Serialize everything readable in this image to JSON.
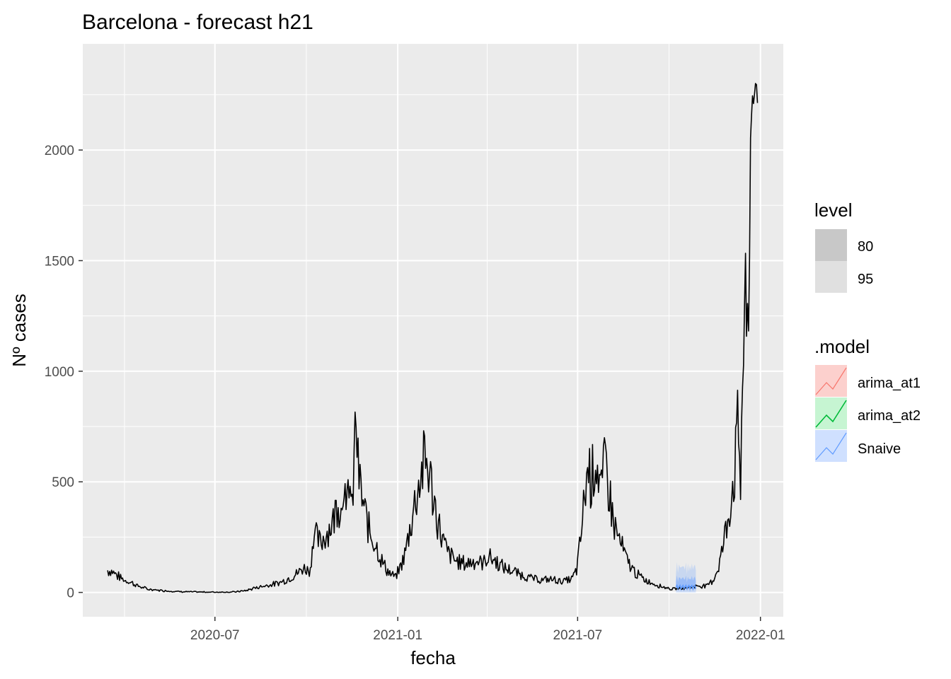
{
  "chart_data": {
    "type": "line",
    "title": "Barcelona - forecast h21",
    "xlabel": "fecha",
    "ylabel": "Nº cases",
    "x_ticks": [
      "2020-07",
      "2021-01",
      "2021-07",
      "2022-01"
    ],
    "y_ticks": [
      0,
      500,
      1000,
      1500,
      2000
    ],
    "ylim": [
      -110,
      2480
    ],
    "xlim": [
      "2020-02-19",
      "2022-01-24"
    ],
    "grid": true,
    "colors": {
      "panel": "#ebebeb",
      "grid": "#ffffff",
      "series": "#000000",
      "arima_at1": "#f8766d",
      "arima_at2": "#00ba38",
      "snaive": "#619cff",
      "level80": "#c8c8c8",
      "level95": "#e0e0e0"
    },
    "series": [
      {
        "name": "Nº cases",
        "date_range": [
          "2020-03-15",
          "2021-12-29"
        ],
        "points": [
          [
            "2020-03-15",
            100
          ],
          [
            "2020-03-20",
            95
          ],
          [
            "2020-03-25",
            75
          ],
          [
            "2020-04-01",
            55
          ],
          [
            "2020-04-08",
            45
          ],
          [
            "2020-04-15",
            28
          ],
          [
            "2020-04-25",
            14
          ],
          [
            "2020-05-10",
            8
          ],
          [
            "2020-05-25",
            4
          ],
          [
            "2020-06-10",
            2
          ],
          [
            "2020-07-01",
            1
          ],
          [
            "2020-07-20",
            2
          ],
          [
            "2020-08-01",
            8
          ],
          [
            "2020-08-10",
            20
          ],
          [
            "2020-08-20",
            30
          ],
          [
            "2020-09-01",
            40
          ],
          [
            "2020-09-10",
            55
          ],
          [
            "2020-09-20",
            80
          ],
          [
            "2020-09-28",
            110
          ],
          [
            "2020-10-05",
            100
          ],
          [
            "2020-10-08",
            270
          ],
          [
            "2020-10-15",
            220
          ],
          [
            "2020-10-20",
            260
          ],
          [
            "2020-10-28",
            320
          ],
          [
            "2020-11-02",
            430
          ],
          [
            "2020-11-05",
            360
          ],
          [
            "2020-11-08",
            580
          ],
          [
            "2020-11-10",
            300
          ],
          [
            "2020-11-13",
            540
          ],
          [
            "2020-11-16",
            350
          ],
          [
            "2020-11-19",
            700
          ],
          [
            "2020-11-20",
            800
          ],
          [
            "2020-11-22",
            560
          ],
          [
            "2020-11-25",
            450
          ],
          [
            "2020-11-28",
            380
          ],
          [
            "2020-12-02",
            300
          ],
          [
            "2020-12-06",
            250
          ],
          [
            "2020-12-10",
            220
          ],
          [
            "2020-12-15",
            150
          ],
          [
            "2020-12-20",
            110
          ],
          [
            "2020-12-25",
            80
          ],
          [
            "2020-12-30",
            70
          ],
          [
            "2021-01-04",
            120
          ],
          [
            "2021-01-08",
            170
          ],
          [
            "2021-01-12",
            260
          ],
          [
            "2021-01-15",
            330
          ],
          [
            "2021-01-20",
            450
          ],
          [
            "2021-01-25",
            540
          ],
          [
            "2021-01-28",
            600
          ],
          [
            "2021-02-01",
            560
          ],
          [
            "2021-02-05",
            450
          ],
          [
            "2021-02-10",
            330
          ],
          [
            "2021-02-15",
            240
          ],
          [
            "2021-02-20",
            180
          ],
          [
            "2021-03-01",
            140
          ],
          [
            "2021-03-10",
            130
          ],
          [
            "2021-03-20",
            145
          ],
          [
            "2021-03-28",
            130
          ],
          [
            "2021-04-02",
            165
          ],
          [
            "2021-04-10",
            140
          ],
          [
            "2021-04-18",
            110
          ],
          [
            "2021-04-25",
            100
          ],
          [
            "2021-05-05",
            80
          ],
          [
            "2021-05-15",
            65
          ],
          [
            "2021-05-25",
            55
          ],
          [
            "2021-06-05",
            60
          ],
          [
            "2021-06-15",
            50
          ],
          [
            "2021-06-25",
            60
          ],
          [
            "2021-06-30",
            100
          ],
          [
            "2021-07-03",
            200
          ],
          [
            "2021-07-06",
            330
          ],
          [
            "2021-07-09",
            480
          ],
          [
            "2021-07-12",
            570
          ],
          [
            "2021-07-15",
            500
          ],
          [
            "2021-07-19",
            620
          ],
          [
            "2021-07-22",
            540
          ],
          [
            "2021-07-25",
            440
          ],
          [
            "2021-07-29",
            600
          ],
          [
            "2021-08-02",
            450
          ],
          [
            "2021-08-06",
            320
          ],
          [
            "2021-08-10",
            260
          ],
          [
            "2021-08-15",
            200
          ],
          [
            "2021-08-20",
            140
          ],
          [
            "2021-08-28",
            90
          ],
          [
            "2021-09-05",
            60
          ],
          [
            "2021-09-15",
            40
          ],
          [
            "2021-09-25",
            25
          ],
          [
            "2021-10-05",
            15
          ],
          [
            "2021-10-15",
            20
          ],
          [
            "2021-10-25",
            25
          ],
          [
            "2021-11-01",
            30
          ],
          [
            "2021-11-08",
            30
          ],
          [
            "2021-11-15",
            60
          ],
          [
            "2021-11-20",
            120
          ],
          [
            "2021-11-24",
            200
          ],
          [
            "2021-11-28",
            300
          ],
          [
            "2021-12-02",
            420
          ],
          [
            "2021-12-06",
            550
          ],
          [
            "2021-12-09",
            720
          ],
          [
            "2021-12-11",
            650
          ],
          [
            "2021-12-12",
            480
          ],
          [
            "2021-12-14",
            1000
          ],
          [
            "2021-12-16",
            1250
          ],
          [
            "2021-12-18",
            1150
          ],
          [
            "2021-12-20",
            1120
          ],
          [
            "2021-12-22",
            2050
          ],
          [
            "2021-12-24",
            2250
          ],
          [
            "2021-12-26",
            2360
          ],
          [
            "2021-12-27",
            2180
          ],
          [
            "2021-12-29",
            2160
          ]
        ]
      }
    ],
    "forecasts": [
      {
        "model": "Snaive",
        "start": "2021-10-08",
        "end": "2021-10-28",
        "mean": 25,
        "level80": [
          10,
          70
        ],
        "level95": [
          0,
          130
        ]
      }
    ]
  },
  "legend": {
    "level": {
      "title": "level",
      "items": [
        {
          "label": "80",
          "color": "#c8c8c8"
        },
        {
          "label": "95",
          "color": "#e0e0e0"
        }
      ]
    },
    "model": {
      "title": ".model",
      "items": [
        {
          "label": "arima_at1",
          "fill": "#fcd0cd",
          "stroke": "#f8766d"
        },
        {
          "label": "arima_at2",
          "fill": "#c6f5d2",
          "stroke": "#00ba38"
        },
        {
          "label": "Snaive",
          "fill": "#cfe0ff",
          "stroke": "#619cff"
        }
      ]
    }
  }
}
